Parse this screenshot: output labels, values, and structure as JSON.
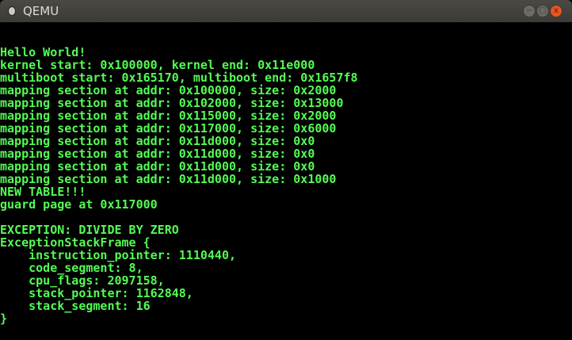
{
  "window": {
    "title": "QEMU",
    "minimize_label": "−",
    "maximize_label": "□",
    "close_label": "x"
  },
  "console": {
    "color": "#54fc54",
    "lines": [
      "Hello World!",
      "kernel start: 0x100000, kernel end: 0x11e000",
      "multiboot start: 0x165170, multiboot end: 0x1657f8",
      "mapping section at addr: 0x100000, size: 0x2000",
      "mapping section at addr: 0x102000, size: 0x13000",
      "mapping section at addr: 0x115000, size: 0x2000",
      "mapping section at addr: 0x117000, size: 0x6000",
      "mapping section at addr: 0x11d000, size: 0x0",
      "mapping section at addr: 0x11d000, size: 0x0",
      "mapping section at addr: 0x11d000, size: 0x0",
      "mapping section at addr: 0x11d000, size: 0x1000",
      "NEW TABLE!!!",
      "guard page at 0x117000",
      "",
      "EXCEPTION: DIVIDE BY ZERO",
      "ExceptionStackFrame {",
      "    instruction_pointer: 1110440,",
      "    code_segment: 8,",
      "    cpu_flags: 2097158,",
      "    stack_pointer: 1162848,",
      "    stack_segment: 16",
      "}"
    ]
  }
}
